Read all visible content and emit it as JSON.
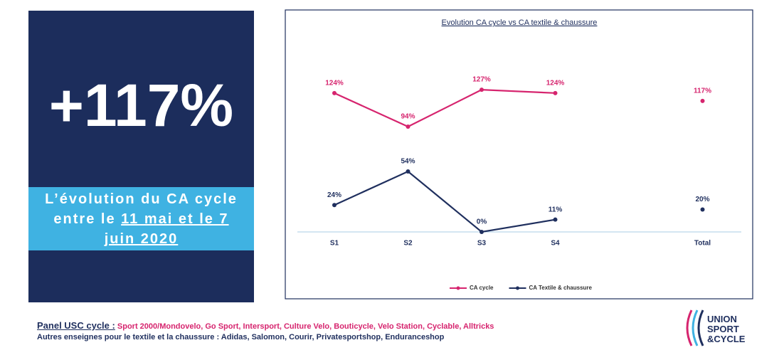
{
  "kpi": {
    "value": "+117%",
    "caption_lead": "L’évolution du CA cycle entre le",
    "caption_dates": "11 mai et le 7 juin 2020"
  },
  "chart_data": {
    "type": "line",
    "title": "Evolution CA cycle vs CA textile & chaussure",
    "categories": [
      "S1",
      "S2",
      "S3",
      "S4",
      null,
      "Total"
    ],
    "series": [
      {
        "name": "CA cycle",
        "color": "#d6246e",
        "values": [
          124,
          94,
          127,
          124,
          null,
          117
        ],
        "value_labels": [
          "124%",
          "94%",
          "127%",
          "124%",
          null,
          "117%"
        ]
      },
      {
        "name": "CA Textile & chaussure",
        "color": "#1f2f5e",
        "values": [
          24,
          54,
          0,
          11,
          null,
          20
        ],
        "value_labels": [
          "24%",
          "54%",
          "0%",
          "11%",
          null,
          "20%"
        ]
      }
    ],
    "legend": "bottom"
  },
  "panel": {
    "label": "Panel USC cycle :",
    "brands": "Sport 2000/Mondovelo, Go Sport, Intersport, Culture Velo, Bouticycle, Velo Station, Cyclable, Alltricks",
    "other": "Autres enseignes pour le textile et la chaussure : Adidas, Salomon, Courir, Privatesportshop, Enduranceshop"
  },
  "logo": {
    "line1": "UNION",
    "line2": "SPORT",
    "line3": "&CYCLE"
  }
}
